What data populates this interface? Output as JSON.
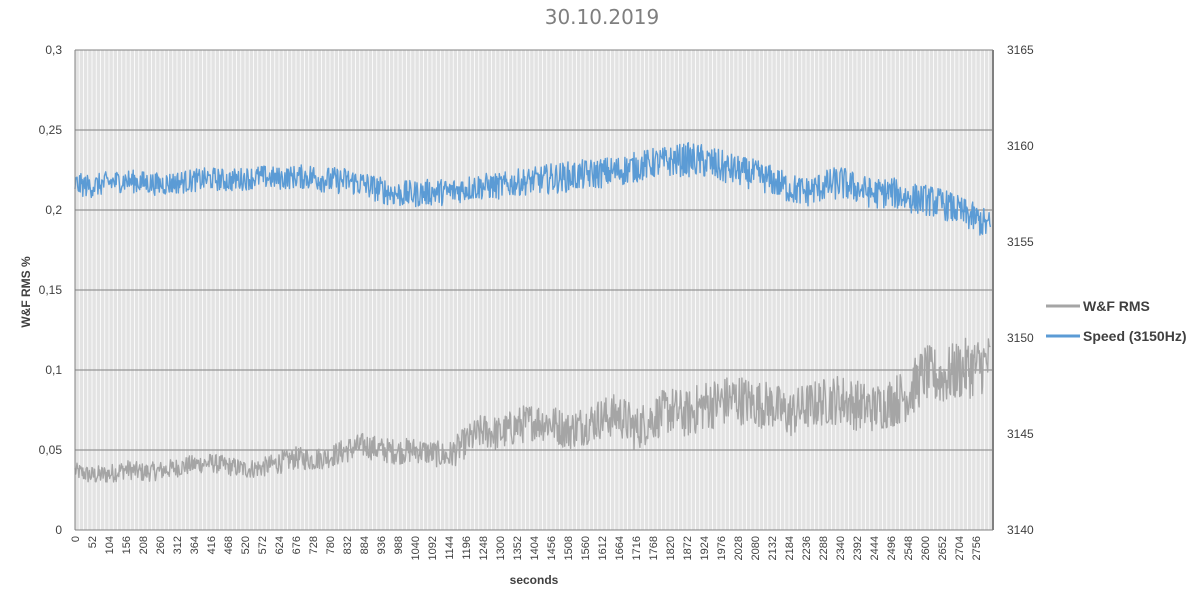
{
  "chart_data": {
    "type": "line",
    "title": "30.10.2019",
    "xlabel": "seconds",
    "ylabel": "W&F RMS %",
    "y2label": "",
    "xlim": [
      0,
      2808
    ],
    "ylim": [
      0,
      0.3
    ],
    "y2lim": [
      3140,
      3165
    ],
    "grid": true,
    "legend_position": "right",
    "y_ticks": [
      "0",
      "0,05",
      "0,1",
      "0,15",
      "0,2",
      "0,25",
      "0,3"
    ],
    "y2_ticks": [
      "3140",
      "3145",
      "3150",
      "3155",
      "3160",
      "3165"
    ],
    "x_ticks": [
      "0",
      "52",
      "104",
      "156",
      "208",
      "260",
      "312",
      "364",
      "416",
      "468",
      "520",
      "572",
      "624",
      "676",
      "728",
      "780",
      "832",
      "884",
      "936",
      "988",
      "1040",
      "1092",
      "1144",
      "1196",
      "1248",
      "1300",
      "1352",
      "1404",
      "1456",
      "1508",
      "1560",
      "1612",
      "1664",
      "1716",
      "1768",
      "1820",
      "1872",
      "1924",
      "1976",
      "2028",
      "2080",
      "2132",
      "2184",
      "2236",
      "2288",
      "2340",
      "2392",
      "2444",
      "2496",
      "2548",
      "2600",
      "2652",
      "2704",
      "2756"
    ],
    "series": [
      {
        "name": "W&F RMS",
        "axis": "left",
        "color": "#a5a5a5",
        "x": [
          0,
          52,
          104,
          156,
          208,
          260,
          312,
          364,
          416,
          468,
          520,
          572,
          624,
          676,
          728,
          780,
          832,
          884,
          936,
          988,
          1040,
          1092,
          1144,
          1196,
          1248,
          1300,
          1352,
          1404,
          1456,
          1508,
          1560,
          1612,
          1664,
          1716,
          1768,
          1820,
          1872,
          1924,
          1976,
          2028,
          2080,
          2132,
          2184,
          2236,
          2288,
          2340,
          2392,
          2444,
          2496,
          2548,
          2600,
          2652,
          2704,
          2756,
          2800
        ],
        "values": [
          0.037,
          0.034,
          0.035,
          0.038,
          0.036,
          0.037,
          0.039,
          0.041,
          0.042,
          0.04,
          0.038,
          0.039,
          0.042,
          0.045,
          0.044,
          0.046,
          0.05,
          0.053,
          0.05,
          0.049,
          0.05,
          0.048,
          0.046,
          0.055,
          0.062,
          0.06,
          0.065,
          0.068,
          0.067,
          0.062,
          0.066,
          0.07,
          0.072,
          0.063,
          0.07,
          0.075,
          0.072,
          0.078,
          0.08,
          0.082,
          0.079,
          0.078,
          0.072,
          0.077,
          0.08,
          0.082,
          0.078,
          0.076,
          0.08,
          0.085,
          0.098,
          0.095,
          0.1,
          0.102,
          0.105
        ],
        "band": [
          0.005,
          0.006,
          0.006,
          0.006,
          0.006,
          0.006,
          0.006,
          0.006,
          0.006,
          0.006,
          0.006,
          0.006,
          0.007,
          0.007,
          0.007,
          0.007,
          0.008,
          0.008,
          0.008,
          0.008,
          0.008,
          0.008,
          0.009,
          0.01,
          0.011,
          0.011,
          0.012,
          0.012,
          0.012,
          0.012,
          0.013,
          0.013,
          0.014,
          0.014,
          0.014,
          0.015,
          0.015,
          0.016,
          0.016,
          0.016,
          0.015,
          0.015,
          0.015,
          0.015,
          0.015,
          0.016,
          0.016,
          0.015,
          0.016,
          0.017,
          0.018,
          0.018,
          0.019,
          0.019,
          0.018
        ]
      },
      {
        "name": "Speed (3150Hz)",
        "axis": "right",
        "color": "#5b9bd5",
        "x": [
          0,
          52,
          104,
          156,
          208,
          260,
          312,
          364,
          416,
          468,
          520,
          572,
          624,
          676,
          728,
          780,
          832,
          884,
          936,
          988,
          1040,
          1092,
          1144,
          1196,
          1248,
          1300,
          1352,
          1404,
          1456,
          1508,
          1560,
          1612,
          1664,
          1716,
          1768,
          1820,
          1872,
          1924,
          1976,
          2028,
          2080,
          2132,
          2184,
          2236,
          2288,
          2340,
          2392,
          2444,
          2496,
          2548,
          2600,
          2652,
          2704,
          2756,
          2800
        ],
        "values": [
          3158.0,
          3157.9,
          3158.1,
          3158.2,
          3158.1,
          3158.0,
          3158.1,
          3158.2,
          3158.3,
          3158.2,
          3158.3,
          3158.4,
          3158.3,
          3158.4,
          3158.4,
          3158.2,
          3158.2,
          3158.0,
          3157.7,
          3157.5,
          3157.5,
          3157.6,
          3157.6,
          3157.8,
          3157.9,
          3157.9,
          3158.1,
          3158.2,
          3158.3,
          3158.4,
          3158.5,
          3158.6,
          3158.7,
          3158.9,
          3159.1,
          3159.2,
          3159.3,
          3159.2,
          3158.9,
          3158.7,
          3158.5,
          3158.2,
          3157.8,
          3157.6,
          3157.9,
          3158.1,
          3157.8,
          3157.5,
          3157.6,
          3157.3,
          3157.2,
          3157.0,
          3156.6,
          3156.2,
          3155.8
        ],
        "band": [
          0.6,
          0.6,
          0.6,
          0.6,
          0.6,
          0.6,
          0.6,
          0.6,
          0.6,
          0.6,
          0.6,
          0.6,
          0.6,
          0.6,
          0.7,
          0.7,
          0.7,
          0.7,
          0.7,
          0.7,
          0.7,
          0.7,
          0.7,
          0.7,
          0.7,
          0.7,
          0.7,
          0.7,
          0.8,
          0.8,
          0.8,
          0.8,
          0.8,
          0.8,
          0.8,
          0.8,
          0.9,
          0.9,
          0.9,
          0.8,
          0.8,
          0.8,
          0.8,
          0.8,
          0.8,
          0.9,
          0.8,
          0.8,
          0.8,
          0.8,
          0.8,
          0.8,
          0.8,
          0.8,
          0.8
        ]
      }
    ]
  }
}
